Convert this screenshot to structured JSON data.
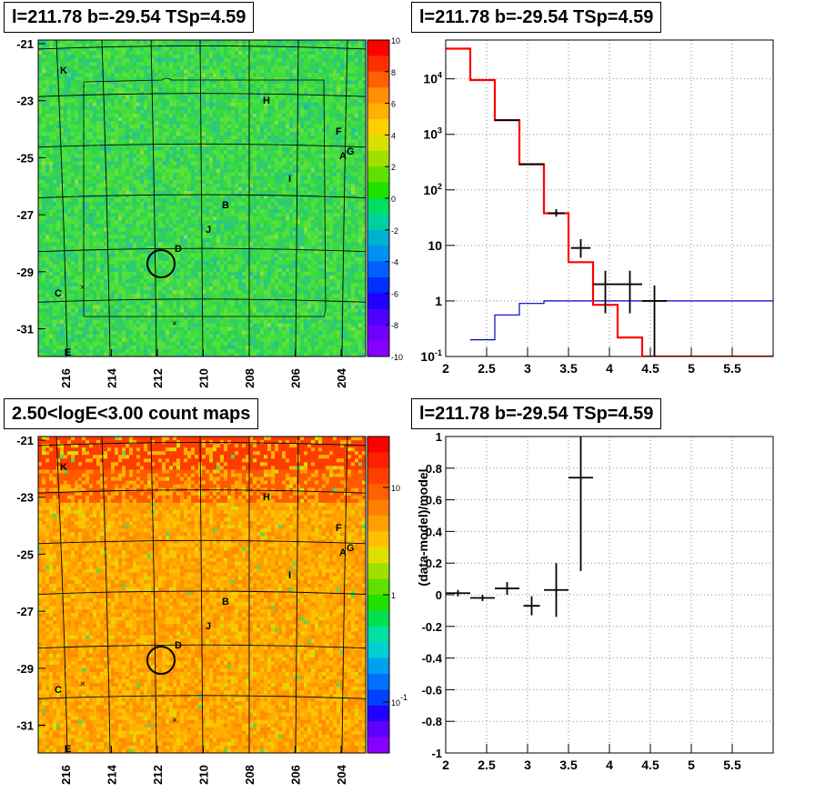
{
  "panels": {
    "map_top_title": "l=211.78 b=-29.54 TSp=4.59",
    "spectrum_title": "l=211.78 b=-29.54 TSp=4.59",
    "map_bottom_title": "2.50<logE<3.00 count maps",
    "residual_title": "l=211.78 b=-29.54 TSp=4.59"
  },
  "colors": {
    "model_red": "#ff0000",
    "background_blue": "#0000cc",
    "data_black": "#000000",
    "grid": "#888888"
  },
  "chart_data": [
    {
      "type": "heatmap",
      "name": "ts-map",
      "x_ticks": [
        "216",
        "214",
        "212",
        "210",
        "208",
        "206",
        "204"
      ],
      "y_ticks": [
        "-21",
        "-23",
        "-25",
        "-27",
        "-29",
        "-31"
      ],
      "colorbar_ticks": [
        "10",
        "8",
        "6",
        "4",
        "2",
        "0",
        "-2",
        "-4",
        "-6",
        "-8",
        "-10"
      ],
      "zlim": [
        -10,
        10
      ],
      "source_labels": [
        "K",
        "H",
        "F",
        "A",
        "G",
        "I",
        "B",
        "J",
        "D",
        "C",
        "E"
      ]
    },
    {
      "type": "line",
      "name": "spectrum",
      "x_ticks": [
        "2",
        "2.5",
        "3",
        "3.5",
        "4",
        "4.5",
        "5",
        "5.5"
      ],
      "y_ticks": [
        "10^-1",
        "1",
        "10",
        "10^2",
        "10^3",
        "10^4"
      ],
      "xlim": [
        2,
        6
      ],
      "ylim": [
        0.1,
        50000
      ],
      "log_y": true,
      "grid": true,
      "model_bins": [
        {
          "x0": 2.0,
          "x1": 2.3,
          "y": 35000
        },
        {
          "x0": 2.3,
          "x1": 2.6,
          "y": 9500
        },
        {
          "x0": 2.6,
          "x1": 2.9,
          "y": 1800
        },
        {
          "x0": 2.9,
          "x1": 3.2,
          "y": 290
        },
        {
          "x0": 3.2,
          "x1": 3.5,
          "y": 38
        },
        {
          "x0": 3.5,
          "x1": 3.8,
          "y": 5
        },
        {
          "x0": 3.8,
          "x1": 4.1,
          "y": 0.85
        },
        {
          "x0": 4.1,
          "x1": 4.4,
          "y": 0.22
        },
        {
          "x0": 4.4,
          "x1": 6.0,
          "y": 0.1
        }
      ],
      "background_bins": [
        {
          "x0": 2.3,
          "x1": 2.6,
          "y": 0.2
        },
        {
          "x0": 2.6,
          "x1": 2.9,
          "y": 0.56
        },
        {
          "x0": 2.9,
          "x1": 3.2,
          "y": 0.9
        },
        {
          "x0": 3.2,
          "x1": 3.5,
          "y": 1.0
        },
        {
          "x0": 3.5,
          "x1": 6.0,
          "y": 1.0
        }
      ],
      "data_points": [
        {
          "x": 2.75,
          "y": 1800,
          "xerr": 0.15,
          "ylo": 1800,
          "yhi": 1800
        },
        {
          "x": 3.05,
          "y": 290,
          "xerr": 0.15,
          "ylo": 280,
          "yhi": 300
        },
        {
          "x": 3.35,
          "y": 38,
          "xerr": 0.1,
          "ylo": 33,
          "yhi": 45
        },
        {
          "x": 3.65,
          "y": 9,
          "xerr": 0.12,
          "ylo": 6,
          "yhi": 13
        },
        {
          "x": 3.95,
          "y": 2,
          "xerr": 0.15,
          "ylo": 0.6,
          "yhi": 3.5
        },
        {
          "x": 4.25,
          "y": 2,
          "xerr": 0.15,
          "ylo": 0.6,
          "yhi": 3.5
        },
        {
          "x": 4.55,
          "y": 1.0,
          "xerr": 0.15,
          "ylo": 0.1,
          "yhi": 1.9
        }
      ]
    },
    {
      "type": "heatmap",
      "name": "count-map",
      "x_ticks": [
        "216",
        "214",
        "212",
        "210",
        "208",
        "206",
        "204"
      ],
      "y_ticks": [
        "-21",
        "-23",
        "-25",
        "-27",
        "-29",
        "-31"
      ],
      "colorbar_ticks": [
        "10",
        "1",
        "10^-1"
      ],
      "source_labels": [
        "K",
        "H",
        "F",
        "A",
        "G",
        "I",
        "B",
        "J",
        "D",
        "C",
        "E"
      ]
    },
    {
      "type": "scatter",
      "name": "residuals",
      "ylabel": "(data-model)/model",
      "x_ticks": [
        "2",
        "2.5",
        "3",
        "3.5",
        "4",
        "4.5",
        "5",
        "5.5"
      ],
      "y_ticks": [
        "-1",
        "-0.8",
        "-0.6",
        "-0.4",
        "-0.2",
        "0",
        "0.2",
        "0.4",
        "0.6",
        "0.8",
        "1"
      ],
      "xlim": [
        2,
        6
      ],
      "ylim": [
        -1,
        1
      ],
      "grid": true,
      "points": [
        {
          "x": 2.15,
          "y": 0.01,
          "xerr": 0.15,
          "yerr": 0.02
        },
        {
          "x": 2.45,
          "y": -0.02,
          "xerr": 0.15,
          "yerr": 0.02
        },
        {
          "x": 2.75,
          "y": 0.04,
          "xerr": 0.15,
          "yerr": 0.04
        },
        {
          "x": 3.05,
          "y": -0.07,
          "xerr": 0.1,
          "yerr": 0.06
        },
        {
          "x": 3.35,
          "y": 0.03,
          "xerr": 0.15,
          "yerr": 0.17
        },
        {
          "x": 3.65,
          "y": 0.74,
          "xerr": 0.15,
          "ylo": 0.15,
          "yhi": 1.0
        }
      ]
    }
  ]
}
